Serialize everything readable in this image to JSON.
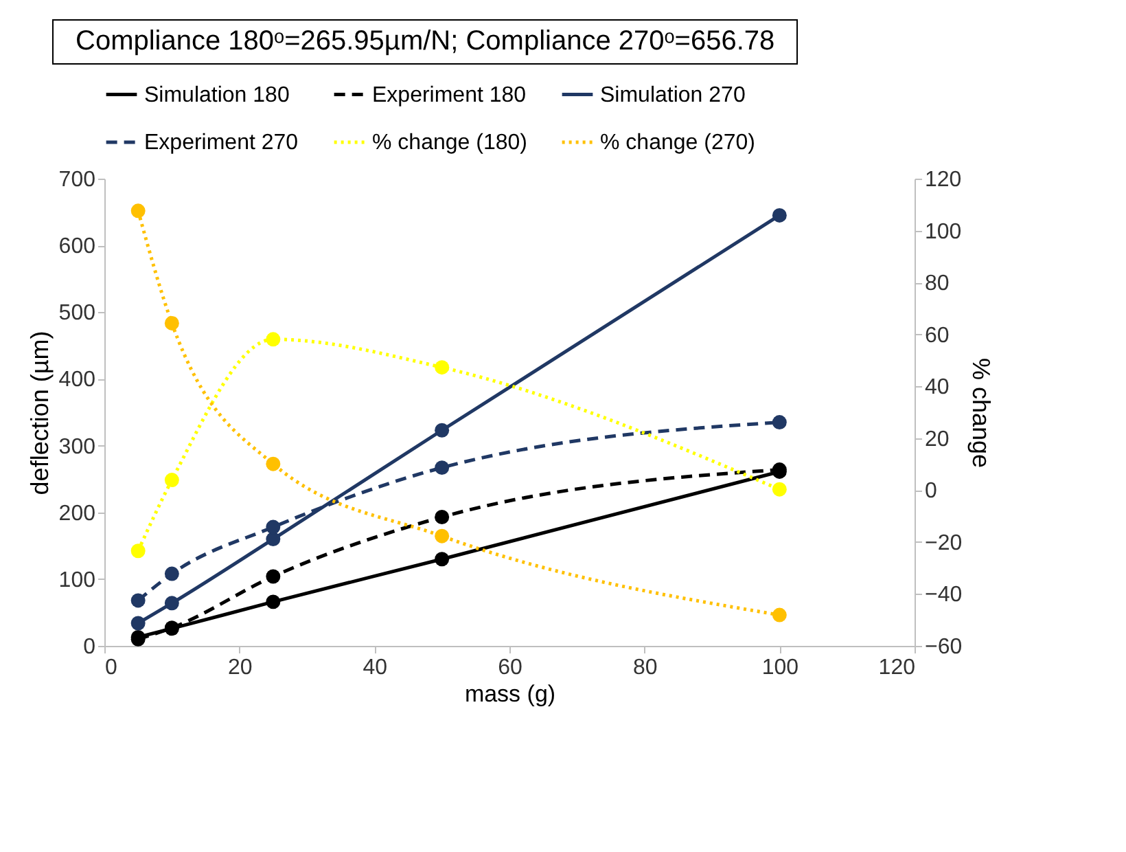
{
  "chart_data": {
    "type": "line",
    "title": "Compliance 180ᵒ=265.95µm/N; Compliance 270ᵒ=656.78",
    "x": [
      5,
      10,
      25,
      50,
      100
    ],
    "series": [
      {
        "name": "Simulation 180",
        "color": "#000000",
        "line_style": "solid",
        "values": [
          13,
          26,
          66,
          130,
          261
        ]
      },
      {
        "name": "Experiment 180",
        "color": "#000000",
        "line_style": "dashed",
        "values": [
          10,
          27,
          104,
          193,
          264
        ]
      },
      {
        "name": "Simulation 270",
        "color": "#203864",
        "line_style": "solid",
        "values": [
          34,
          64,
          160,
          323,
          645
        ]
      },
      {
        "name": "Experiment 270",
        "color": "#203864",
        "line_style": "dashed",
        "values": [
          68,
          108,
          178,
          267,
          335
        ]
      },
      {
        "name": "% change (180)",
        "color": "#ffff00",
        "line_style": "dotted",
        "axis": "y2",
        "values": [
          -23.4,
          3.9,
          58.1,
          47.3,
          0.3
        ]
      },
      {
        "name": "% change (270)",
        "color": "#ffc000",
        "line_style": "dotted",
        "axis": "y2",
        "values": [
          107.6,
          64.3,
          10.1,
          -17.7,
          -48.1
        ]
      }
    ],
    "xlabel": "mass (g)",
    "ylabel": "deflection (µm)",
    "y2label": "% change",
    "xlim": [
      0,
      120
    ],
    "xticks": [
      0,
      20,
      40,
      60,
      80,
      100,
      120
    ],
    "ylim": [
      0,
      700
    ],
    "yticks": [
      0,
      100,
      200,
      300,
      400,
      500,
      600,
      700
    ],
    "y2lim": [
      -60,
      120
    ],
    "y2ticks": [
      -60,
      -40,
      -20,
      0,
      20,
      40,
      60,
      80,
      100,
      120
    ],
    "grid": false,
    "legend": "top",
    "marker": "circle"
  }
}
